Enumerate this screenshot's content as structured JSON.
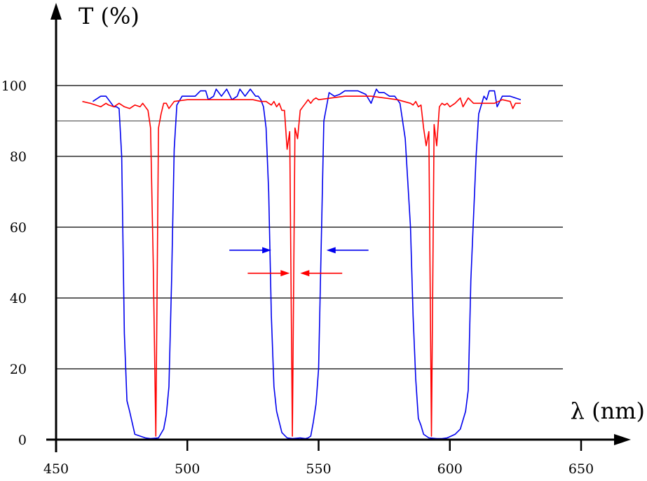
{
  "chart_data": {
    "type": "line",
    "title": "",
    "xlabel": "λ (nm)",
    "ylabel": "T (%)",
    "xlim": [
      450,
      665
    ],
    "ylim": [
      0,
      115
    ],
    "x_ticks": [
      450,
      500,
      550,
      600,
      650
    ],
    "y_ticks": [
      0,
      20,
      40,
      60,
      80,
      100
    ],
    "grid_lines_y": [
      20,
      40,
      60,
      80,
      90,
      100
    ],
    "grid": true,
    "legend": "none",
    "colors": {
      "series_1": "#0000ee",
      "series_2": "#ff0000",
      "axis": "#000000"
    },
    "series": [
      {
        "color": "#0000ee",
        "x": [
          464,
          467,
          469,
          472,
          473,
          474,
          475,
          476,
          477,
          478,
          480,
          484,
          486,
          489,
          491,
          492,
          493,
          494,
          495,
          496,
          498,
          500,
          503,
          505,
          507,
          508,
          510,
          511,
          513,
          515,
          517,
          519,
          520,
          522,
          524,
          526,
          527,
          528,
          529,
          530,
          531,
          532,
          533,
          534,
          536,
          538,
          540,
          543,
          545,
          546,
          547,
          548,
          549,
          550,
          552,
          554,
          556,
          558,
          560,
          563,
          565,
          568,
          570,
          572,
          573,
          575,
          577,
          579,
          581,
          583,
          585,
          586,
          587,
          588,
          589,
          590,
          592,
          595,
          597,
          599,
          602,
          604,
          606,
          607,
          608,
          610,
          611,
          613,
          614,
          615,
          617,
          618,
          620,
          623,
          627
        ],
        "y": [
          95.5,
          97,
          97,
          94,
          94,
          93.5,
          80,
          30,
          11,
          8,
          1.5,
          0.5,
          0.3,
          0.5,
          3,
          7,
          15,
          45,
          82,
          94.5,
          97,
          97,
          97,
          98.5,
          98.5,
          96,
          97,
          99,
          97,
          99,
          96,
          97,
          99,
          97,
          99,
          97,
          97,
          96,
          94,
          88,
          70,
          35,
          15,
          8,
          2,
          0.5,
          0.3,
          0.5,
          0.3,
          0.5,
          1,
          5,
          10,
          20,
          90,
          98,
          97,
          97.5,
          98.5,
          98.5,
          98.5,
          97.5,
          95,
          99,
          98,
          98,
          97,
          97,
          95,
          85,
          60,
          35,
          17,
          6,
          4,
          1.5,
          0.5,
          0.3,
          0.3,
          0.5,
          1.5,
          3,
          8,
          14,
          45,
          80,
          92,
          97,
          96,
          98.5,
          98.5,
          94,
          97,
          97,
          96
        ]
      },
      {
        "color": "#ff0000",
        "x": [
          460,
          463,
          465,
          467,
          469,
          470,
          472,
          474,
          476,
          478,
          480,
          482,
          483,
          484,
          485,
          486,
          487,
          488,
          489,
          490,
          491,
          492,
          493,
          495,
          500,
          505,
          510,
          515,
          520,
          525,
          528,
          530,
          531,
          532,
          533,
          534,
          535,
          536,
          537,
          538,
          539,
          540,
          541,
          542,
          543,
          544,
          545,
          546,
          547,
          548,
          549,
          550,
          555,
          560,
          565,
          570,
          575,
          580,
          585,
          586,
          587,
          588,
          589,
          590,
          591,
          592,
          593,
          594,
          595,
          596,
          597,
          598,
          599,
          600,
          602,
          604,
          605,
          607,
          609,
          611,
          613,
          615,
          617,
          620,
          623,
          624,
          625,
          627
        ],
        "y": [
          95.5,
          95,
          94.5,
          94,
          95,
          94.5,
          94,
          95,
          94,
          93.5,
          94.5,
          94,
          95,
          94,
          93,
          88,
          50,
          1,
          88,
          92,
          95,
          95,
          93.5,
          95.5,
          96,
          96,
          96,
          96,
          96,
          96,
          95.5,
          95.5,
          95,
          94.5,
          95.5,
          94,
          95,
          93,
          93,
          82,
          87,
          1,
          88,
          85,
          93,
          94,
          95,
          96,
          95,
          96,
          96.5,
          96,
          96.5,
          97,
          97,
          97,
          96.5,
          96,
          95,
          94.5,
          95.5,
          94,
          94.5,
          88,
          83,
          87,
          1,
          89,
          83,
          94,
          95,
          94.5,
          95,
          94,
          95,
          96.5,
          94,
          96.5,
          95,
          95,
          95,
          95,
          95,
          96,
          95.5,
          93.5,
          95,
          95
        ]
      }
    ],
    "annotations": [
      {
        "type": "arrow-pair",
        "color": "#0000ee",
        "y": 53.5,
        "left_tip": 532,
        "right_tip": 553
      },
      {
        "type": "arrow-pair",
        "color": "#ff0000",
        "y": 47,
        "left_tip": 539,
        "right_tip": 543
      }
    ]
  }
}
